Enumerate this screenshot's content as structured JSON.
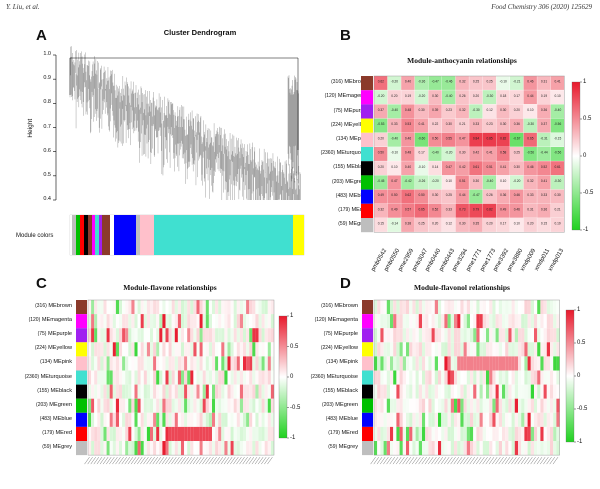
{
  "header": {
    "left": "Y. Liu, et al.",
    "right": "Food Chemistry 306 (2020) 125629"
  },
  "panels": {
    "A": {
      "letter": "A",
      "title": "Cluster Dendrogram",
      "ylabel": "Height",
      "module_colors_label": "Module colors",
      "yticks": [
        "1.0",
        "0.9",
        "0.8",
        "0.7",
        "0.6",
        "0.5",
        "0.4"
      ]
    },
    "B": {
      "letter": "B",
      "title": "Module-anthocyanin relationships"
    },
    "C": {
      "letter": "C",
      "title": "Module-flavone relationships"
    },
    "D": {
      "letter": "D",
      "title": "Module-flavonol relationships"
    }
  },
  "modules": [
    {
      "count": "(316)",
      "name": "MEbrown",
      "color": "#8b3a2b"
    },
    {
      "count": "(120)",
      "name": "MEmagenta",
      "color": "#ff00ff"
    },
    {
      "count": "(75)",
      "name": "MEpurple",
      "color": "#a020f0"
    },
    {
      "count": "(224)",
      "name": "MEyellow",
      "color": "#ffff00"
    },
    {
      "count": "(134)",
      "name": "MEpink",
      "color": "#ffc0cb"
    },
    {
      "count": "(2360)",
      "name": "MEturquoise",
      "color": "#40e0d0"
    },
    {
      "count": "(155)",
      "name": "MEblack",
      "color": "#000000"
    },
    {
      "count": "(203)",
      "name": "MEgreen",
      "color": "#00c000"
    },
    {
      "count": "(483)",
      "name": "MEblue",
      "color": "#0000ff"
    },
    {
      "count": "(179)",
      "name": "MEred",
      "color": "#ff0000"
    },
    {
      "count": "(59)",
      "name": "MEgrey",
      "color": "#bebebe"
    }
  ],
  "anthocyanin_columns": [
    "pmb0542",
    "pmb0550",
    "pme2959",
    "pmb3047",
    "pmb0440",
    "pmb0443",
    "pme3294",
    "pme1771",
    "pme1773",
    "pme3392",
    "pme3880",
    "xmdp009",
    "xmdp011",
    "xmdp013"
  ],
  "colorscale": {
    "ticks": [
      "1",
      "0.5",
      "0",
      "-0.5",
      "-1"
    ],
    "high": "#e8192c",
    "mid": "#ffffff",
    "low": "#1fd11f"
  },
  "chart_data": {
    "type": "heatmap",
    "title": "Module-anthocyanin relationships",
    "rows": [
      "MEbrown",
      "MEmagenta",
      "MEpurple",
      "MEyellow",
      "MEpink",
      "MEturquoise",
      "MEblack",
      "MEgreen",
      "MEblue",
      "MEred",
      "MEgrey"
    ],
    "columns": [
      "pmb0542",
      "pmb0550",
      "pme2959",
      "pmb3047",
      "pmb0440",
      "pmb0443",
      "pme3294",
      "pme1771",
      "pme1773",
      "pme3392",
      "pme3880",
      "xmdp009",
      "xmdp011",
      "xmdp013"
    ],
    "values": [
      [
        0.62,
        -0.2,
        0.4,
        -0.36,
        -0.47,
        -0.46,
        0.32,
        0.25,
        0.25,
        -0.1,
        -0.21,
        0.46,
        0.31,
        0.41
      ],
      [
        -0.2,
        0.2,
        0.19,
        -0.2,
        0.3,
        -0.4,
        0.26,
        0.2,
        -0.3,
        0.18,
        0.17,
        0.44,
        0.19,
        0.1
      ],
      [
        0.37,
        -0.4,
        0.48,
        0.3,
        0.39,
        0.23,
        0.32,
        -0.3,
        0.12,
        0.3,
        0.2,
        0.1,
        0.36,
        -0.4
      ],
      [
        -0.53,
        0.33,
        0.53,
        0.41,
        0.22,
        0.3,
        0.21,
        0.33,
        0.23,
        0.3,
        0.36,
        -0.3,
        0.37,
        -0.56
      ],
      [
        0.2,
        -0.4,
        0.46,
        -0.6,
        0.5,
        0.55,
        0.47,
        0.84,
        0.85,
        0.82,
        -0.67,
        0.65,
        -0.31,
        -0.15
      ],
      [
        0.5,
        -0.1,
        0.48,
        0.17,
        -0.4,
        -0.2,
        0.3,
        0.42,
        0.41,
        0.58,
        0.25,
        -0.56,
        -0.44,
        -0.56
      ],
      [
        0.2,
        0.1,
        0.4,
        -0.1,
        0.14,
        0.47,
        0.42,
        0.61,
        0.51,
        0.41,
        0.3,
        0.46,
        0.52,
        0.61
      ],
      [
        -0.45,
        0.47,
        -0.42,
        -0.26,
        -0.2,
        0.1,
        0.51,
        0.3,
        -0.4,
        0.1,
        -0.2,
        0.32,
        0.41,
        -0.3
      ],
      [
        0.49,
        0.5,
        0.62,
        0.5,
        0.3,
        0.25,
        0.44,
        -0.47,
        0.26,
        0.36,
        0.46,
        0.33,
        0.33,
        0.3
      ],
      [
        0.32,
        0.49,
        0.57,
        0.65,
        0.52,
        0.33,
        0.73,
        0.79,
        0.82,
        0.49,
        0.46,
        0.31,
        0.36,
        0.21
      ],
      [
        0.15,
        -0.14,
        0.38,
        0.25,
        0.2,
        0.12,
        0.3,
        0.35,
        0.2,
        0.17,
        0.1,
        0.2,
        0.15,
        0.19
      ]
    ],
    "legend": {
      "min": -1,
      "max": 1,
      "ticks": [
        1,
        0.5,
        0,
        -0.5,
        -1
      ]
    }
  }
}
